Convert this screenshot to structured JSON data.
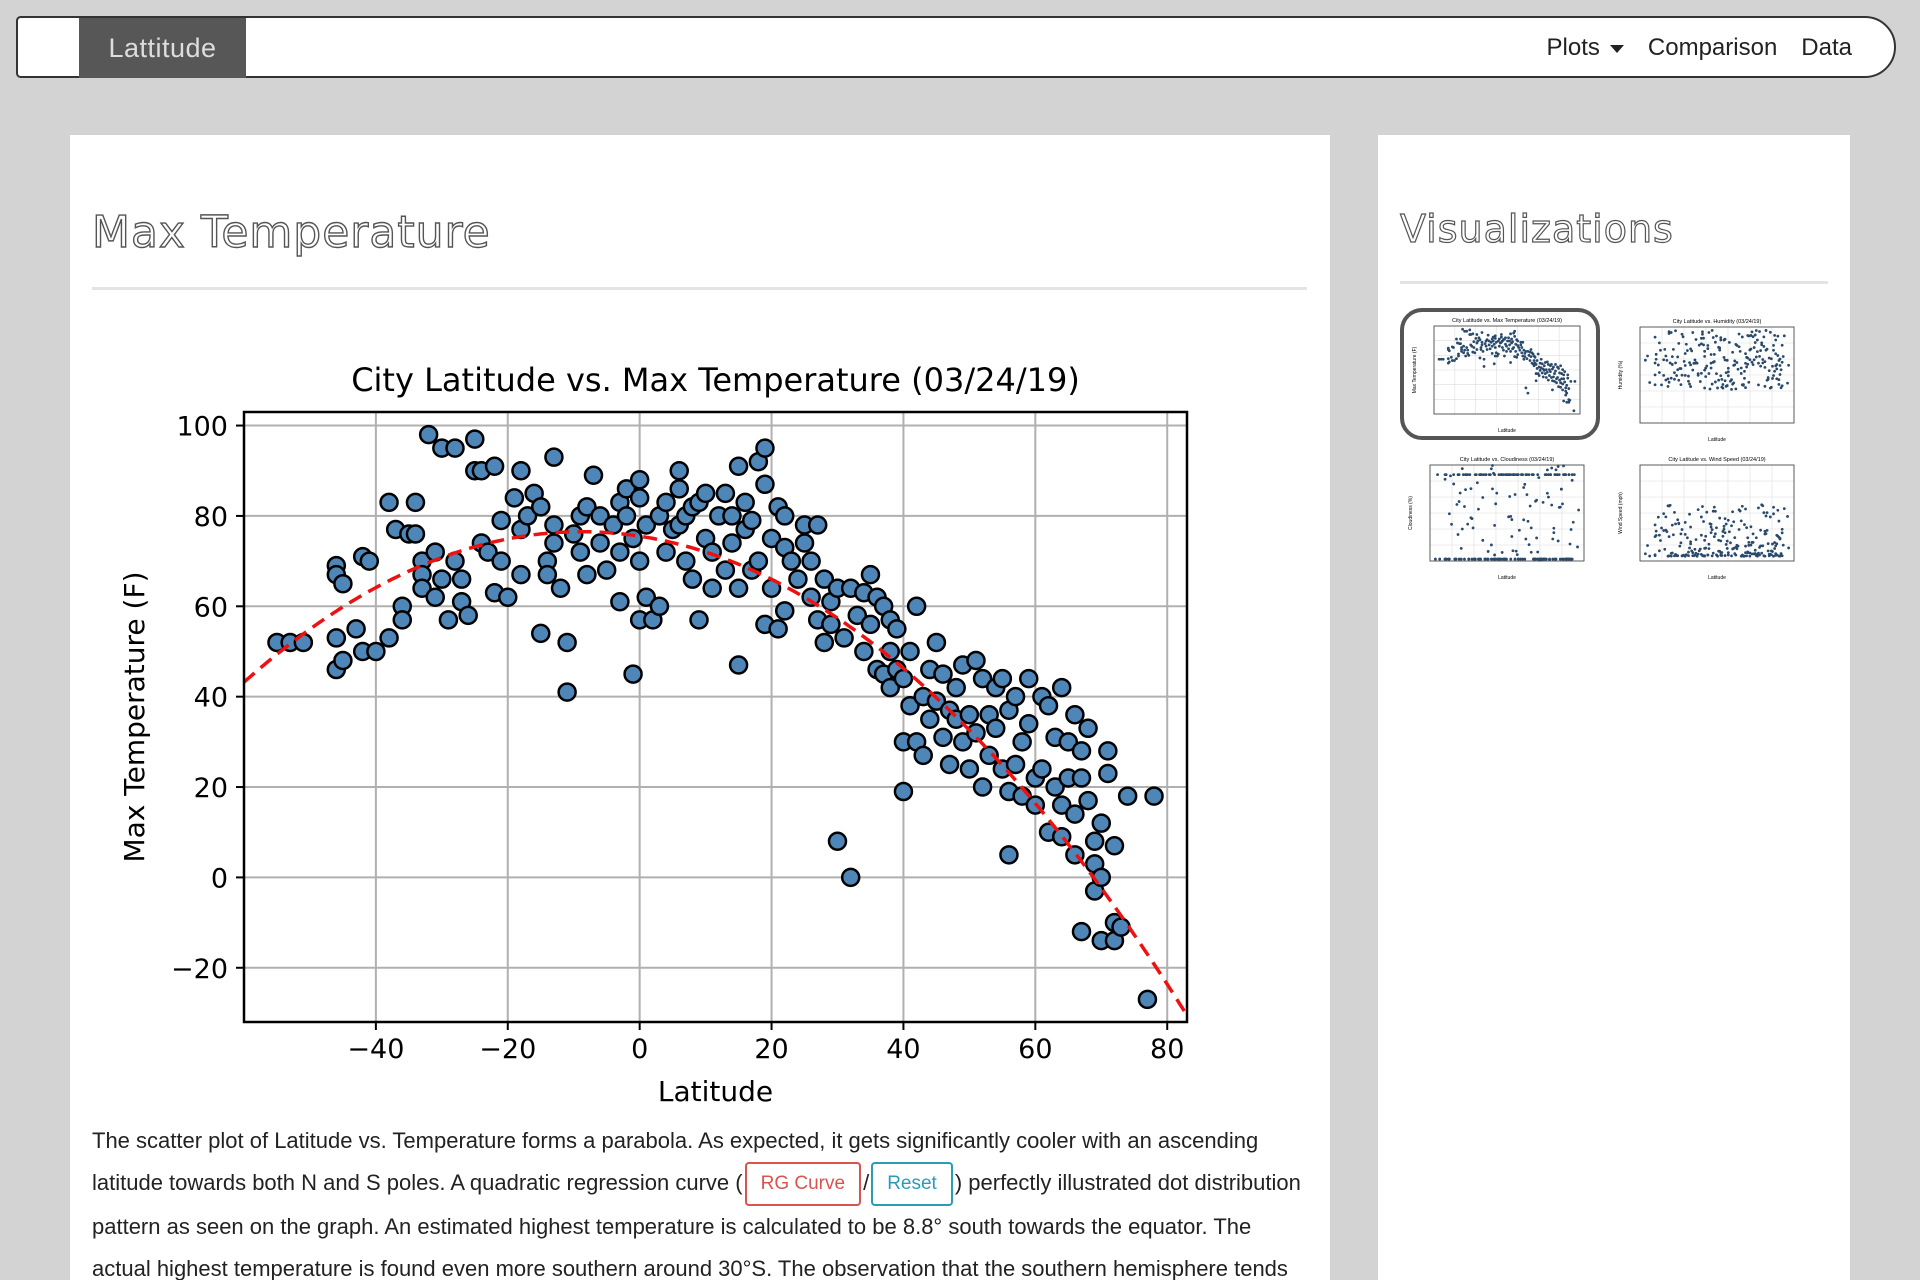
{
  "nav": {
    "brand": "Lattitude",
    "links": [
      {
        "label": "Plots",
        "dropdown": true
      },
      {
        "label": "Comparison"
      },
      {
        "label": "Data"
      }
    ]
  },
  "main": {
    "title": "Max Temperature",
    "description": {
      "part1": "The scatter plot of Latitude vs. Temperature forms a parabola. As expected, it gets significantly cooler with an ascending latitude towards both N and S poles. A quadratic regression curve (",
      "rg_button": "RG Curve",
      "separator": "/",
      "reset_button": "Reset",
      "part2": ") perfectly illustrated dot distribution pattern as seen on the graph. An estimated highest temperature is calculated to be 8.8° south towards the equator. The actual highest temperature is found even more southern around 30°S. The observation that the southern hemisphere tends to be warmer might be due to the tilt of the"
    }
  },
  "sidebar": {
    "title": "Visualizations",
    "thumbnails": [
      {
        "title": "City Latitude vs. Max Temperature (03/24/19)",
        "ylabel": "Max Temperature (F)",
        "xlabel": "Latitude",
        "active": true
      },
      {
        "title": "City Latitude vs. Humidity (03/24/19)",
        "ylabel": "Humidity (%)",
        "xlabel": "Latitude",
        "active": false
      },
      {
        "title": "City Latitude vs. Cloudiness (03/24/19)",
        "ylabel": "Cloudiness (%)",
        "xlabel": "Latitude",
        "active": false
      },
      {
        "title": "City Latitude vs. Wind Speed (03/24/19)",
        "ylabel": "Wind Speed (mph)",
        "xlabel": "Latitude",
        "active": false
      }
    ]
  },
  "colors": {
    "marker_fill": "#4f86b8",
    "marker_edge": "#000000",
    "regression": "#ee1111",
    "grid": "#b0b0b0",
    "thumb_marker": "#2b4a6b"
  },
  "chart_data": {
    "type": "scatter",
    "title": "City Latitude vs. Max Temperature (03/24/19)",
    "xlabel": "Latitude",
    "ylabel": "Max Temperature (F)",
    "xlim": [
      -60,
      83
    ],
    "ylim": [
      -32,
      103
    ],
    "xticks": [
      -40,
      -20,
      0,
      20,
      40,
      60,
      80
    ],
    "yticks": [
      -20,
      0,
      20,
      40,
      60,
      80,
      100
    ],
    "xtick_labels": [
      "−40",
      "−20",
      "0",
      "20",
      "40",
      "60",
      "80"
    ],
    "ytick_labels": [
      "−20",
      "0",
      "20",
      "40",
      "60",
      "80",
      "100"
    ],
    "grid": true,
    "regression": {
      "type": "quadratic",
      "style": "dashed",
      "peak_x": -8.8,
      "peak_y": 76.5,
      "a": -0.0127
    },
    "points": [
      [
        -55,
        52
      ],
      [
        -53,
        52
      ],
      [
        -51,
        52
      ],
      [
        -46,
        46
      ],
      [
        -46,
        53
      ],
      [
        -45,
        48
      ],
      [
        -46,
        69
      ],
      [
        -46,
        67
      ],
      [
        -45,
        65
      ],
      [
        -43,
        55
      ],
      [
        -42,
        71
      ],
      [
        -42,
        50
      ],
      [
        -41,
        70
      ],
      [
        -40,
        50
      ],
      [
        -38,
        53
      ],
      [
        -38,
        83
      ],
      [
        -37,
        77
      ],
      [
        -36,
        60
      ],
      [
        -36,
        57
      ],
      [
        -35,
        76
      ],
      [
        -34,
        83
      ],
      [
        -34,
        76
      ],
      [
        -33,
        70
      ],
      [
        -33,
        67
      ],
      [
        -33,
        64
      ],
      [
        -32,
        98
      ],
      [
        -31,
        72
      ],
      [
        -31,
        62
      ],
      [
        -30,
        95
      ],
      [
        -30,
        66
      ],
      [
        -29,
        57
      ],
      [
        -28,
        95
      ],
      [
        -28,
        70
      ],
      [
        -27,
        66
      ],
      [
        -27,
        61
      ],
      [
        -26,
        58
      ],
      [
        -25,
        97
      ],
      [
        -25,
        90
      ],
      [
        -24,
        90
      ],
      [
        -24,
        74
      ],
      [
        -23,
        72
      ],
      [
        -22,
        91
      ],
      [
        -22,
        63
      ],
      [
        -21,
        79
      ],
      [
        -21,
        70
      ],
      [
        -20,
        62
      ],
      [
        -19,
        84
      ],
      [
        -18,
        90
      ],
      [
        -18,
        77
      ],
      [
        -18,
        67
      ],
      [
        -17,
        80
      ],
      [
        -16,
        85
      ],
      [
        -15,
        82
      ],
      [
        -15,
        54
      ],
      [
        -14,
        70
      ],
      [
        -14,
        67
      ],
      [
        -13,
        93
      ],
      [
        -13,
        78
      ],
      [
        -13,
        74
      ],
      [
        -12,
        64
      ],
      [
        -11,
        52
      ],
      [
        -11,
        41
      ],
      [
        -10,
        76
      ],
      [
        -9,
        80
      ],
      [
        -9,
        72
      ],
      [
        -8,
        82
      ],
      [
        -8,
        67
      ],
      [
        -7,
        89
      ],
      [
        -6,
        80
      ],
      [
        -6,
        74
      ],
      [
        -5,
        68
      ],
      [
        -4,
        78
      ],
      [
        -3,
        83
      ],
      [
        -3,
        72
      ],
      [
        -3,
        61
      ],
      [
        -2,
        80
      ],
      [
        -2,
        86
      ],
      [
        -1,
        75
      ],
      [
        -1,
        45
      ],
      [
        0,
        88
      ],
      [
        0,
        84
      ],
      [
        0,
        70
      ],
      [
        0,
        57
      ],
      [
        1,
        78
      ],
      [
        1,
        62
      ],
      [
        2,
        57
      ],
      [
        3,
        60
      ],
      [
        3,
        80
      ],
      [
        4,
        83
      ],
      [
        4,
        72
      ],
      [
        5,
        77
      ],
      [
        6,
        90
      ],
      [
        6,
        86
      ],
      [
        6,
        78
      ],
      [
        7,
        80
      ],
      [
        7,
        70
      ],
      [
        8,
        82
      ],
      [
        8,
        66
      ],
      [
        9,
        57
      ],
      [
        9,
        83
      ],
      [
        10,
        85
      ],
      [
        10,
        75
      ],
      [
        11,
        72
      ],
      [
        11,
        64
      ],
      [
        12,
        80
      ],
      [
        13,
        85
      ],
      [
        13,
        68
      ],
      [
        14,
        80
      ],
      [
        14,
        74
      ],
      [
        15,
        91
      ],
      [
        15,
        64
      ],
      [
        15,
        47
      ],
      [
        16,
        83
      ],
      [
        16,
        77
      ],
      [
        17,
        79
      ],
      [
        17,
        68
      ],
      [
        18,
        92
      ],
      [
        18,
        70
      ],
      [
        19,
        95
      ],
      [
        19,
        87
      ],
      [
        19,
        56
      ],
      [
        20,
        75
      ],
      [
        20,
        64
      ],
      [
        21,
        82
      ],
      [
        21,
        55
      ],
      [
        22,
        80
      ],
      [
        22,
        59
      ],
      [
        22,
        73
      ],
      [
        23,
        70
      ],
      [
        24,
        66
      ],
      [
        25,
        78
      ],
      [
        25,
        74
      ],
      [
        26,
        70
      ],
      [
        26,
        62
      ],
      [
        27,
        78
      ],
      [
        27,
        57
      ],
      [
        28,
        52
      ],
      [
        28,
        66
      ],
      [
        29,
        61
      ],
      [
        29,
        56
      ],
      [
        30,
        64
      ],
      [
        30,
        8
      ],
      [
        31,
        53
      ],
      [
        32,
        64
      ],
      [
        32,
        0
      ],
      [
        33,
        58
      ],
      [
        34,
        50
      ],
      [
        34,
        63
      ],
      [
        35,
        67
      ],
      [
        35,
        56
      ],
      [
        36,
        62
      ],
      [
        36,
        46
      ],
      [
        37,
        45
      ],
      [
        37,
        60
      ],
      [
        38,
        57
      ],
      [
        38,
        50
      ],
      [
        38,
        42
      ],
      [
        39,
        55
      ],
      [
        39,
        46
      ],
      [
        40,
        44
      ],
      [
        40,
        30
      ],
      [
        40,
        19
      ],
      [
        41,
        38
      ],
      [
        41,
        50
      ],
      [
        42,
        30
      ],
      [
        42,
        60
      ],
      [
        43,
        40
      ],
      [
        43,
        27
      ],
      [
        44,
        46
      ],
      [
        44,
        35
      ],
      [
        45,
        52
      ],
      [
        45,
        39
      ],
      [
        46,
        31
      ],
      [
        46,
        45
      ],
      [
        47,
        37
      ],
      [
        47,
        25
      ],
      [
        48,
        35
      ],
      [
        48,
        42
      ],
      [
        49,
        47
      ],
      [
        49,
        30
      ],
      [
        50,
        36
      ],
      [
        50,
        24
      ],
      [
        51,
        48
      ],
      [
        51,
        32
      ],
      [
        52,
        44
      ],
      [
        52,
        20
      ],
      [
        53,
        36
      ],
      [
        53,
        27
      ],
      [
        54,
        42
      ],
      [
        54,
        33
      ],
      [
        55,
        44
      ],
      [
        55,
        24
      ],
      [
        56,
        37
      ],
      [
        56,
        19
      ],
      [
        56,
        5
      ],
      [
        57,
        40
      ],
      [
        57,
        25
      ],
      [
        58,
        30
      ],
      [
        58,
        18
      ],
      [
        59,
        44
      ],
      [
        59,
        34
      ],
      [
        60,
        22
      ],
      [
        60,
        16
      ],
      [
        61,
        40
      ],
      [
        61,
        24
      ],
      [
        62,
        38
      ],
      [
        62,
        10
      ],
      [
        63,
        31
      ],
      [
        63,
        20
      ],
      [
        64,
        42
      ],
      [
        64,
        16
      ],
      [
        64,
        9
      ],
      [
        65,
        30
      ],
      [
        65,
        22
      ],
      [
        66,
        36
      ],
      [
        66,
        14
      ],
      [
        66,
        5
      ],
      [
        67,
        28
      ],
      [
        67,
        -12
      ],
      [
        67,
        22
      ],
      [
        68,
        33
      ],
      [
        68,
        17
      ],
      [
        69,
        8
      ],
      [
        69,
        3
      ],
      [
        69,
        -3
      ],
      [
        70,
        0
      ],
      [
        70,
        12
      ],
      [
        70,
        -14
      ],
      [
        71,
        28
      ],
      [
        71,
        23
      ],
      [
        72,
        7
      ],
      [
        72,
        -10
      ],
      [
        72,
        -14
      ],
      [
        73,
        -11
      ],
      [
        74,
        18
      ],
      [
        77,
        -27
      ],
      [
        78,
        18
      ]
    ]
  }
}
